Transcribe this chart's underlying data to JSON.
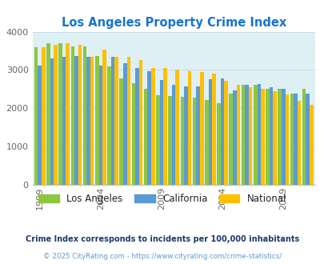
{
  "title": "Los Angeles Property Crime Index",
  "title_color": "#1874CD",
  "years": [
    1999,
    2000,
    2001,
    2002,
    2003,
    2004,
    2005,
    2006,
    2007,
    2008,
    2009,
    2010,
    2011,
    2012,
    2013,
    2014,
    2015,
    2016,
    2017,
    2018,
    2019,
    2020,
    2021
  ],
  "los_angeles": [
    3600,
    3700,
    3700,
    3620,
    3610,
    3360,
    3090,
    2780,
    2660,
    2510,
    2350,
    2320,
    2290,
    2280,
    2210,
    2130,
    2380,
    2620,
    2610,
    2510,
    2510,
    2390,
    2510
  ],
  "california": [
    3110,
    3300,
    3350,
    3360,
    3340,
    3110,
    3350,
    3170,
    3060,
    2970,
    2730,
    2620,
    2580,
    2570,
    2760,
    2780,
    2460,
    2620,
    2640,
    2560,
    2510,
    2390,
    2380
  ],
  "national": [
    3600,
    3650,
    3700,
    3660,
    3350,
    3540,
    3340,
    3340,
    3250,
    3050,
    3050,
    3000,
    2960,
    2940,
    2910,
    2720,
    2620,
    2550,
    2500,
    2450,
    2360,
    2200,
    2100
  ],
  "la_color": "#8DC63F",
  "ca_color": "#5B9BD5",
  "na_color": "#FFC000",
  "bg_color": "#DFF0F5",
  "ylim": [
    0,
    4000
  ],
  "yticks": [
    0,
    1000,
    2000,
    3000,
    4000
  ],
  "xlabel_years": [
    1999,
    2004,
    2009,
    2014,
    2019
  ],
  "legend_labels": [
    "Los Angeles",
    "California",
    "National"
  ],
  "footnote1": "Crime Index corresponds to incidents per 100,000 inhabitants",
  "footnote2": "© 2025 CityRating.com - https://www.cityrating.com/crime-statistics/",
  "footnote1_color": "#1C3A6B",
  "footnote2_color": "#5B9BD5",
  "grid_color": "#C8DCE8"
}
